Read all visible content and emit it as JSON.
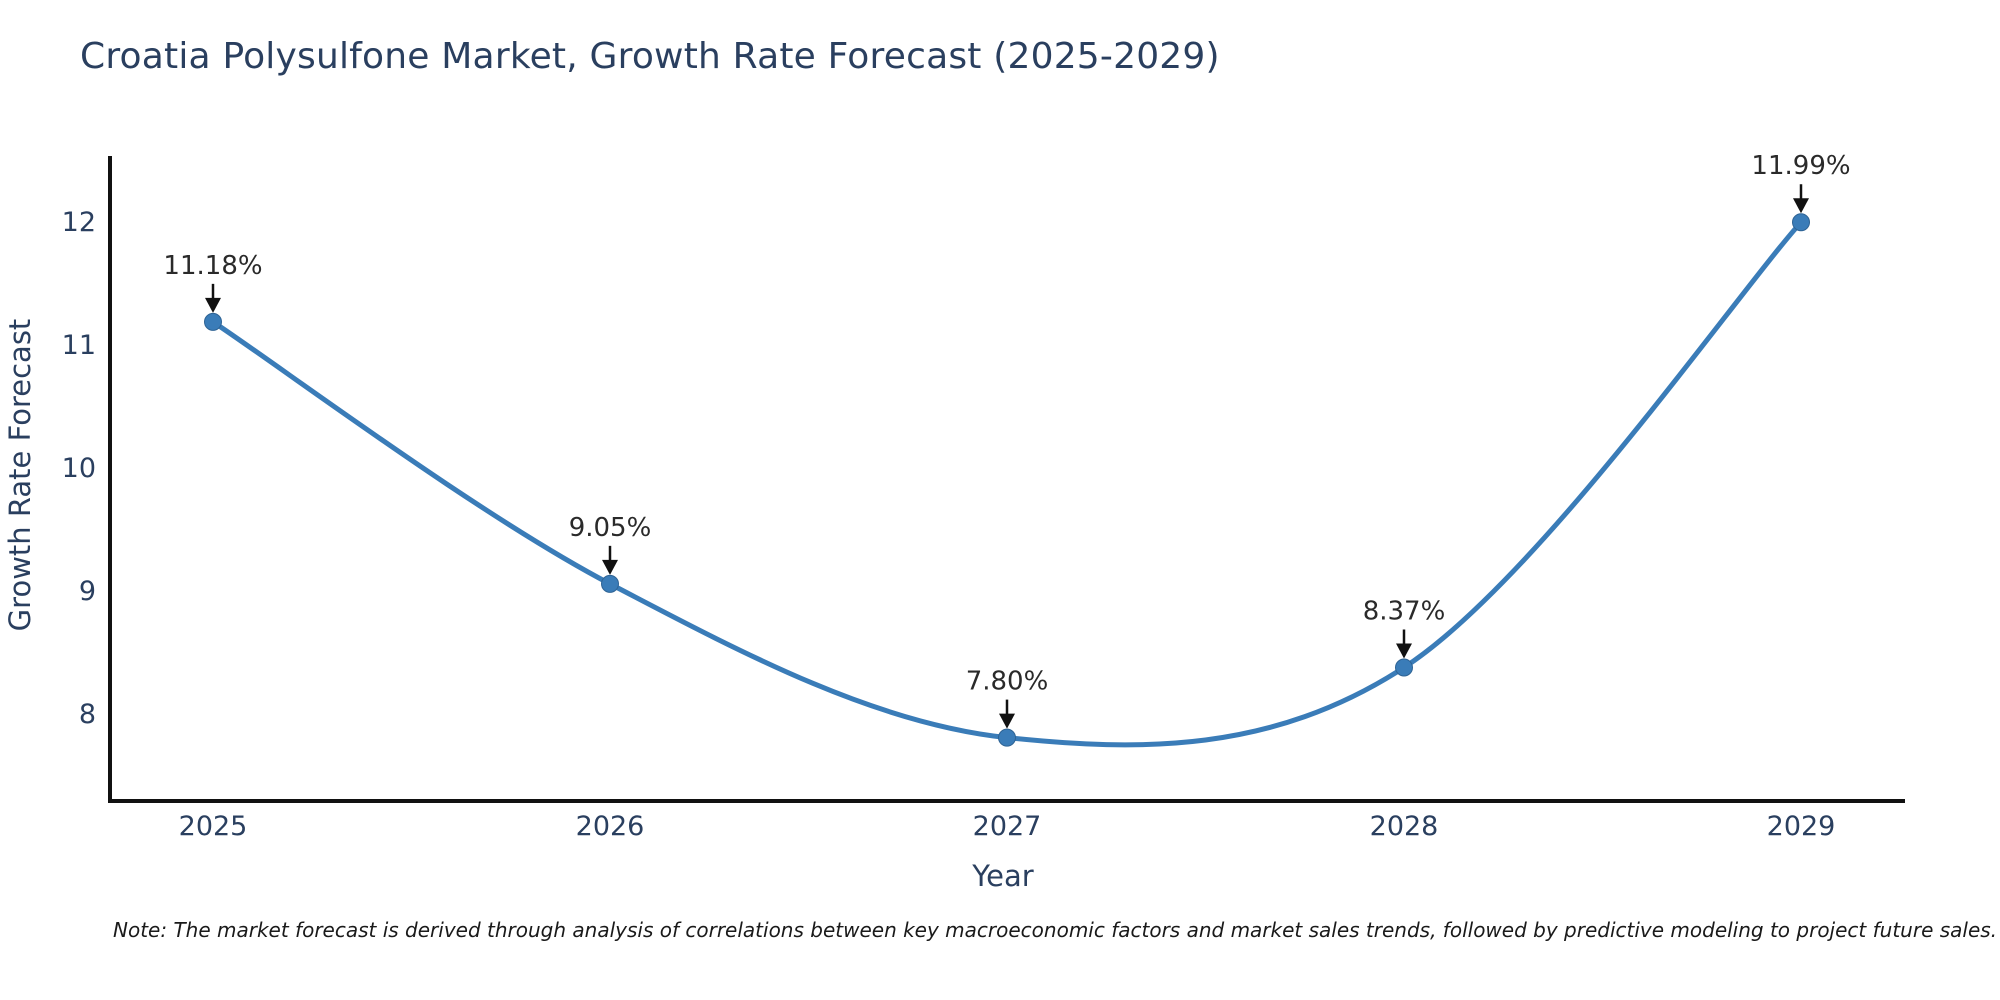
{
  "note": "Note: The market forecast is derived through analysis of correlations between key macroeconomic factors and market sales trends, followed by predictive modeling to project future sales.",
  "chart_data": {
    "type": "line",
    "title": "Croatia Polysulfone Market, Growth Rate Forecast (2025-2029)",
    "x": [
      "2025",
      "2026",
      "2027",
      "2028",
      "2029"
    ],
    "y": [
      11.18,
      9.05,
      7.8,
      8.37,
      11.99
    ],
    "point_labels": [
      "11.18%",
      "9.05%",
      "7.80%",
      "8.37%",
      "11.99%"
    ],
    "xlabel": "Year",
    "ylabel": "Growth Rate Forecast",
    "yticks": [
      8,
      9,
      10,
      11,
      12
    ],
    "ylim": [
      7.3,
      12.5
    ],
    "grid": false,
    "legend": "none",
    "line_shape": "spline",
    "annotation_style": "arrow-down-to-point",
    "colors": {
      "line": "#3a7cb8",
      "marker": "#3a7cb8",
      "marker_edge": "#2e6394",
      "axis": "#111111",
      "title_text": "#2a3f5f",
      "tick_text": "#2a3f5f",
      "axis_label_text": "#2a3f5f",
      "annotation_text": "#2a2a2a",
      "arrow": "#111111",
      "note_text": "#1a1a1a"
    }
  }
}
